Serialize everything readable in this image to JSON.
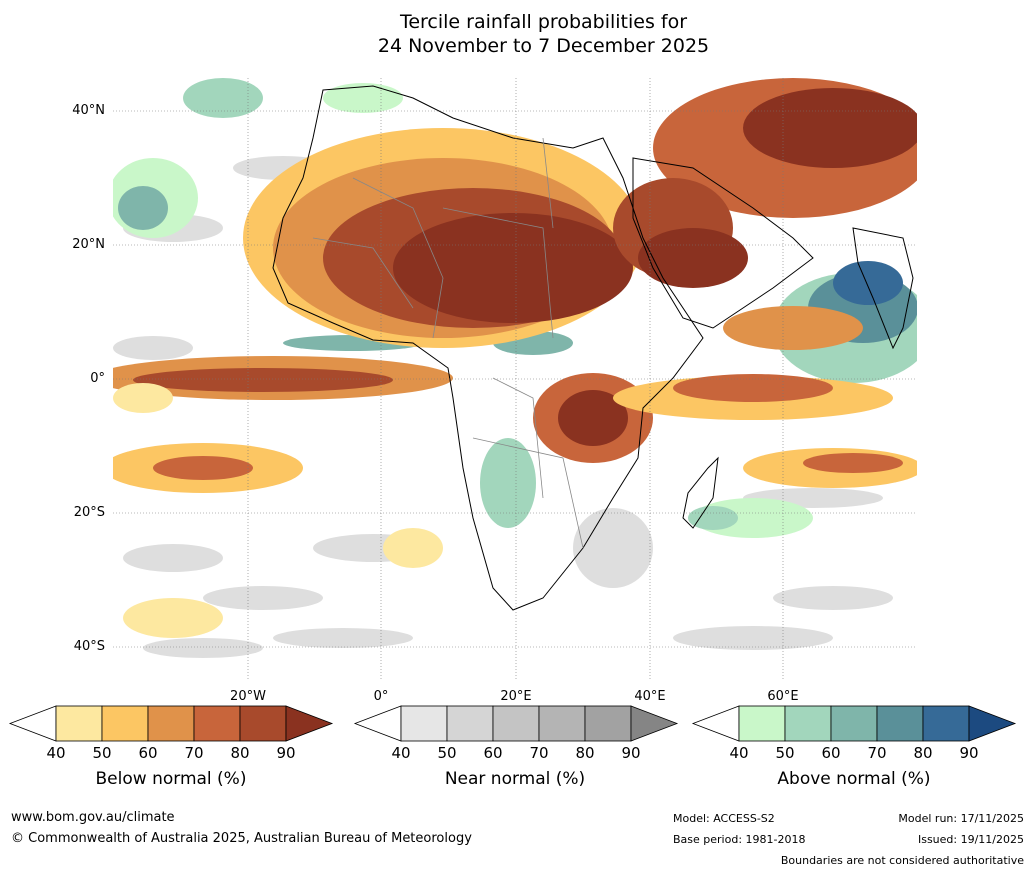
{
  "title": {
    "line1": "Tercile rainfall probabilities for",
    "line2": "24 November to 7 December 2025"
  },
  "map": {
    "region": "Africa",
    "lat_labels": [
      "40°N",
      "20°N",
      "0°",
      "20°S",
      "40°S"
    ],
    "lon_labels": [
      "20°W",
      "0°",
      "20°E",
      "40°E",
      "60°E"
    ]
  },
  "colorbars": [
    {
      "name": "below",
      "label": "Below normal (%)",
      "ticks": [
        "40",
        "50",
        "60",
        "70",
        "80",
        "90"
      ],
      "colors": [
        "#fde8a0",
        "#fcc663",
        "#e0924a",
        "#c8653b",
        "#a84a2c",
        "#8a3220"
      ]
    },
    {
      "name": "near",
      "label": "Near normal (%)",
      "ticks": [
        "40",
        "50",
        "60",
        "70",
        "80",
        "90"
      ],
      "colors": [
        "#e6e6e6",
        "#d5d5d5",
        "#c4c4c4",
        "#b4b4b4",
        "#a2a2a2",
        "#858585"
      ]
    },
    {
      "name": "above",
      "label": "Above normal (%)",
      "ticks": [
        "40",
        "50",
        "60",
        "70",
        "80",
        "90"
      ],
      "colors": [
        "#c9f7c9",
        "#a2d6bc",
        "#7fb5aa",
        "#5a9099",
        "#366a97",
        "#1c4a80"
      ]
    }
  ],
  "footer": {
    "website": "www.bom.gov.au/climate",
    "copyright": "© Commonwealth of Australia 2025, Australian Bureau of Meteorology",
    "model": "Model: ACCESS-S2",
    "base_period": "Base period: 1981-2018",
    "model_run": "Model run: 17/11/2025",
    "issued": "Issued: 19/11/2025",
    "disclaimer": "Boundaries are not considered authoritative"
  }
}
